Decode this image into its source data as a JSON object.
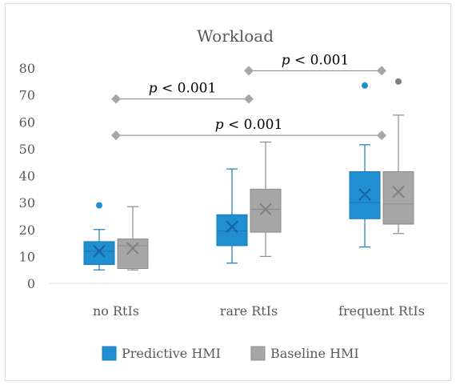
{
  "chart_data": {
    "type": "box",
    "title": "Workload",
    "xlabel": "",
    "ylabel": "",
    "ylim": [
      0,
      80
    ],
    "yticks": [
      0,
      10,
      20,
      30,
      40,
      50,
      60,
      70,
      80
    ],
    "categories": [
      "no RtIs",
      "rare RtIs",
      "frequent RtIs"
    ],
    "grid": false,
    "legend_position": "bottom",
    "series": [
      {
        "name": "Predictive HMI",
        "color": "#1f8fd1",
        "boxes": [
          {
            "min": 5,
            "q1": 7,
            "median": 12,
            "q3": 15.5,
            "max": 20,
            "mean": 12,
            "outliers": [
              29
            ]
          },
          {
            "min": 7.5,
            "q1": 14,
            "median": 19.5,
            "q3": 25.5,
            "max": 42.5,
            "mean": 21,
            "outliers": []
          },
          {
            "min": 13.5,
            "q1": 24,
            "median": 30,
            "q3": 41.5,
            "max": 51.5,
            "mean": 33,
            "outliers": [
              73.5
            ]
          }
        ]
      },
      {
        "name": "Baseline HMI",
        "color": "#a6a6a6",
        "boxes": [
          {
            "min": 5,
            "q1": 5.5,
            "median": 14,
            "q3": 16.5,
            "max": 28.5,
            "mean": 13,
            "outliers": []
          },
          {
            "min": 10,
            "q1": 19,
            "median": 27.5,
            "q3": 35,
            "max": 52.5,
            "mean": 27.5,
            "outliers": []
          },
          {
            "min": 18.5,
            "q1": 22,
            "median": 29.5,
            "q3": 41.5,
            "max": 62.5,
            "mean": 34,
            "outliers": [
              75
            ]
          }
        ]
      }
    ],
    "annotations": [
      {
        "text_italic": "p",
        "text": " < 0.001",
        "from": "no RtIs",
        "to": "rare RtIs",
        "y": 68.5
      },
      {
        "text_italic": "p",
        "text": " < 0.001",
        "from": "rare RtIs",
        "to": "frequent RtIs",
        "y": 79
      },
      {
        "text_italic": "p",
        "text": " < 0.001",
        "from": "no RtIs",
        "to": "frequent RtIs",
        "y": 55
      }
    ]
  }
}
